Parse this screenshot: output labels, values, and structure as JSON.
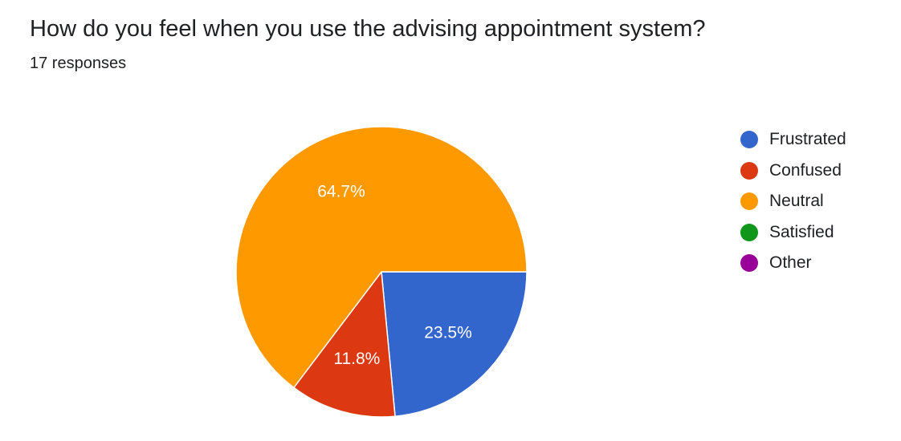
{
  "header": {
    "question": "How do you feel when you use the advising appointment system?",
    "responses": "17 responses"
  },
  "chart_data": {
    "type": "pie",
    "title": "How do you feel when you use the advising appointment system?",
    "total_responses": 17,
    "slices": [
      {
        "label": "Frustrated",
        "percent": 23.5,
        "count": 4,
        "color": "#3366cc",
        "data_label": "23.5%"
      },
      {
        "label": "Confused",
        "percent": 11.8,
        "count": 2,
        "color": "#dc3912",
        "data_label": "11.8%"
      },
      {
        "label": "Neutral",
        "percent": 64.7,
        "count": 11,
        "color": "#ff9900",
        "data_label": "64.7%"
      },
      {
        "label": "Satisfied",
        "percent": 0,
        "count": 0,
        "color": "#109618",
        "data_label": ""
      },
      {
        "label": "Other",
        "percent": 0,
        "count": 0,
        "color": "#990099",
        "data_label": ""
      }
    ],
    "legend_position": "right"
  }
}
